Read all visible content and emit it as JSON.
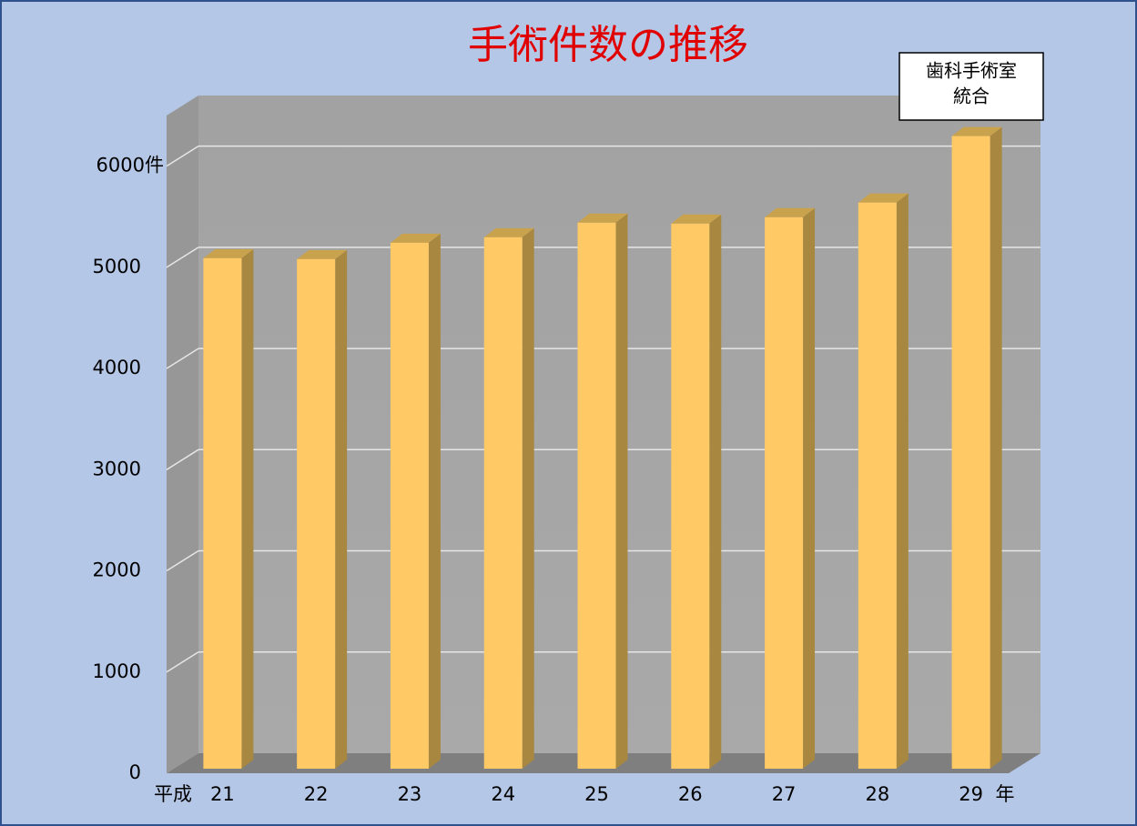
{
  "chart_data": {
    "type": "bar3d",
    "title": "手術件数の推移",
    "annotation": [
      "歯科手術室",
      "統合"
    ],
    "x_prefix": "平成",
    "x_suffix": "年",
    "categories": [
      "21",
      "22",
      "23",
      "24",
      "25",
      "26",
      "27",
      "28",
      "29"
    ],
    "values": [
      5045,
      5036,
      5198,
      5252,
      5396,
      5387,
      5450,
      5595,
      6252
    ],
    "color": "#ffc966",
    "ylim": [
      0,
      6500
    ],
    "yticks": [
      0,
      1000,
      2000,
      3000,
      4000,
      5000,
      {
        "value": 6000,
        "label": "6000件"
      }
    ],
    "grid": true
  }
}
